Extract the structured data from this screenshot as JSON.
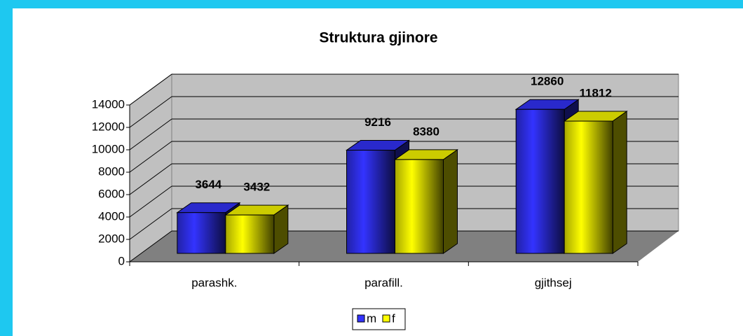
{
  "chart_data": {
    "type": "bar3d",
    "title": "Struktura gjinore",
    "categories": [
      "parashk.",
      "parafill.",
      "gjithsej"
    ],
    "series": [
      {
        "name": "m",
        "color": "#3333ff",
        "values": [
          3644,
          9216,
          12860
        ]
      },
      {
        "name": "f",
        "color": "#ffff00",
        "values": [
          3432,
          8380,
          11812
        ]
      }
    ],
    "ylim": [
      0,
      14000
    ],
    "yticks": [
      0,
      2000,
      4000,
      6000,
      8000,
      10000,
      12000,
      14000
    ],
    "grid": true,
    "legend": "bottom"
  }
}
